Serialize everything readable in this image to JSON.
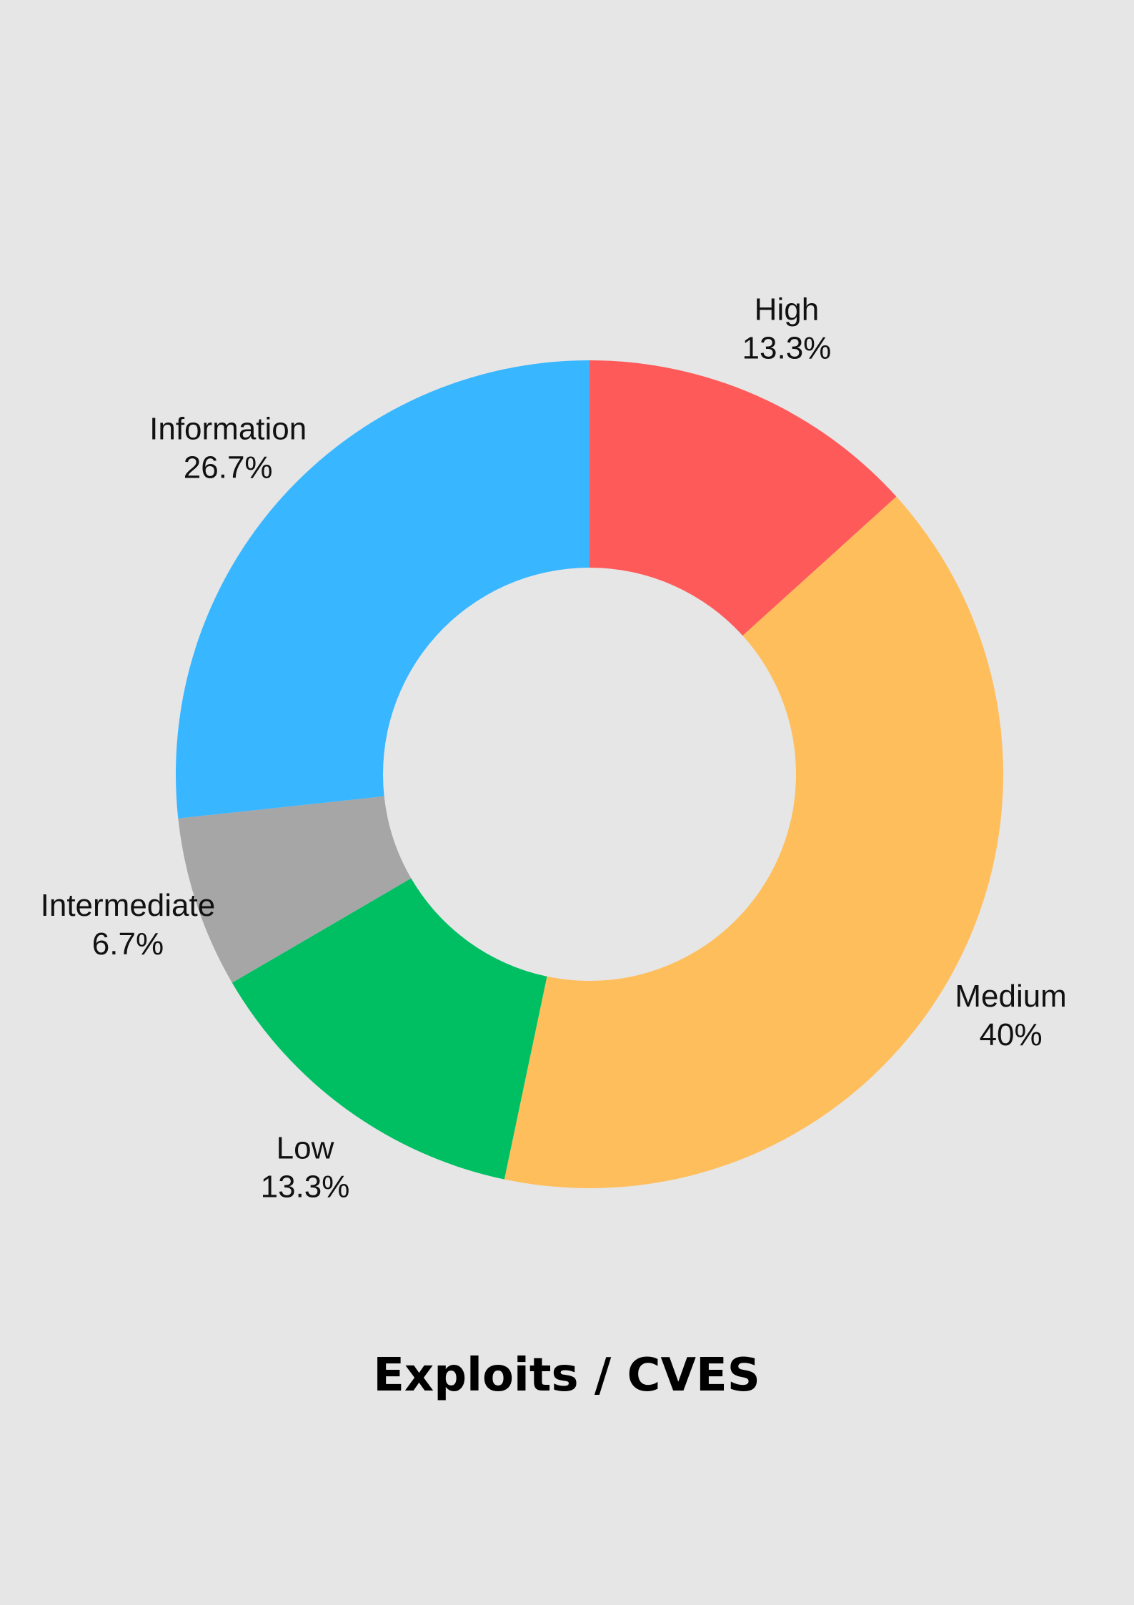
{
  "chart_data": {
    "type": "pie",
    "title": "Exploits / CVES",
    "slices": [
      {
        "label": "High",
        "value": 13.3,
        "value_label": "13.3%",
        "color": "#ff5a5a"
      },
      {
        "label": "Medium",
        "value": 40,
        "value_label": "40%",
        "color": "#ffbe5c"
      },
      {
        "label": "Low",
        "value": 13.3,
        "value_label": "13.3%",
        "color": "#00bf63"
      },
      {
        "label": "Intermediate",
        "value": 6.7,
        "value_label": "6.7%",
        "color": "#a6a6a6"
      },
      {
        "label": "Information",
        "value": 26.7,
        "value_label": "26.7%",
        "color": "#38b6ff"
      }
    ],
    "donut": true,
    "start_angle": "12 o'clock, clockwise",
    "legend": "none (labels outside slices)"
  }
}
